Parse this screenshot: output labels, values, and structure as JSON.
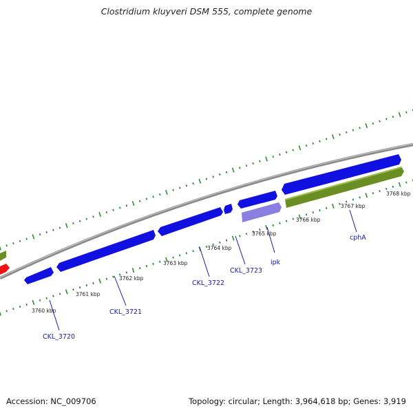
{
  "title": "Clostridium kluyveri DSM 555, complete genome",
  "footer": {
    "accession": "Accession: NC_009706",
    "summary": "Topology: circular; Length: 3,964,618 bp; Genes: 3,919"
  },
  "colors": {
    "backbone": "#8a8a8a",
    "cds": "#1010e0",
    "cds_light": "#8a7ee0",
    "rna": "#6b8e23",
    "other": "#ee1111",
    "tick": "#2e8b2e",
    "label": "#1a1aa6"
  },
  "kbp_labels": [
    {
      "kbp": 3760,
      "text": "3760 kbp"
    },
    {
      "kbp": 3761,
      "text": "3761 kbp"
    },
    {
      "kbp": 3762,
      "text": "3762 kbp"
    },
    {
      "kbp": 3763,
      "text": "3763 kbp"
    },
    {
      "kbp": 3764,
      "text": "3764 kbp"
    },
    {
      "kbp": 3765,
      "text": "3765 kbp"
    },
    {
      "kbp": 3766,
      "text": "3766 kbp"
    },
    {
      "kbp": 3767,
      "text": "3767 kbp"
    },
    {
      "kbp": 3768,
      "text": "3768 kbp"
    }
  ],
  "genes": [
    {
      "name": "CKL_3720",
      "label": "CKL_3720"
    },
    {
      "name": "CKL_3721",
      "label": "CKL_3721"
    },
    {
      "name": "CKL_3722",
      "label": "CKL_3722"
    },
    {
      "name": "CKL_3723",
      "label": "CKL_3723"
    },
    {
      "name": "ipk",
      "label": "ipk"
    },
    {
      "name": "cphA",
      "label": "cphA"
    }
  ]
}
